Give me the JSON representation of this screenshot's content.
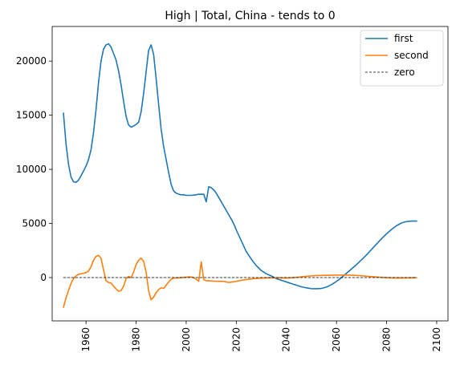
{
  "chart_data": {
    "type": "line",
    "title": "High | Total, China  - tends to 0",
    "xlabel": "",
    "ylabel": "",
    "xlim": [
      1946.5,
      2104.5
    ],
    "ylim": [
      -4000,
      23200
    ],
    "x_ticks": [
      1960,
      1980,
      2000,
      2020,
      2040,
      2060,
      2080,
      2100
    ],
    "x_tick_labels": [
      "1960",
      "1980",
      "2000",
      "2020",
      "2040",
      "2060",
      "2080",
      "2100"
    ],
    "y_ticks": [
      0,
      5000,
      10000,
      15000,
      20000
    ],
    "y_tick_labels": [
      "0",
      "5000",
      "10000",
      "15000",
      "20000"
    ],
    "x_tick_rotation": 90,
    "grid": false,
    "legend_position": "top-right",
    "series": [
      {
        "name": "first",
        "color": "#1f77b4",
        "style": "solid",
        "points": [
          [
            1951,
            15200
          ],
          [
            1952,
            12400
          ],
          [
            1953,
            10500
          ],
          [
            1954,
            9300
          ],
          [
            1955,
            8850
          ],
          [
            1956,
            8800
          ],
          [
            1957,
            9000
          ],
          [
            1958,
            9400
          ],
          [
            1959,
            9850
          ],
          [
            1960,
            10300
          ],
          [
            1961,
            10900
          ],
          [
            1962,
            11800
          ],
          [
            1963,
            13400
          ],
          [
            1964,
            15500
          ],
          [
            1965,
            18000
          ],
          [
            1966,
            20000
          ],
          [
            1967,
            21100
          ],
          [
            1968,
            21500
          ],
          [
            1969,
            21600
          ],
          [
            1970,
            21300
          ],
          [
            1971,
            20700
          ],
          [
            1972,
            20100
          ],
          [
            1973,
            19100
          ],
          [
            1974,
            17800
          ],
          [
            1975,
            16300
          ],
          [
            1976,
            14900
          ],
          [
            1977,
            14100
          ],
          [
            1978,
            13900
          ],
          [
            1979,
            14000
          ],
          [
            1980,
            14150
          ],
          [
            1981,
            14350
          ],
          [
            1982,
            15300
          ],
          [
            1983,
            17000
          ],
          [
            1984,
            19000
          ],
          [
            1985,
            21000
          ],
          [
            1986,
            21500
          ],
          [
            1987,
            20600
          ],
          [
            1988,
            18400
          ],
          [
            1989,
            16000
          ],
          [
            1990,
            13700
          ],
          [
            1991,
            12100
          ],
          [
            1992,
            10900
          ],
          [
            1993,
            9700
          ],
          [
            1994,
            8600
          ],
          [
            1995,
            8000
          ],
          [
            1996,
            7800
          ],
          [
            1997,
            7700
          ],
          [
            1998,
            7650
          ],
          [
            1999,
            7650
          ],
          [
            2000,
            7600
          ],
          [
            2001,
            7600
          ],
          [
            2002,
            7600
          ],
          [
            2003,
            7620
          ],
          [
            2004,
            7650
          ],
          [
            2005,
            7700
          ],
          [
            2006,
            7700
          ],
          [
            2007,
            7700
          ],
          [
            2008,
            7000
          ],
          [
            2009,
            8400
          ],
          [
            2010,
            8300
          ],
          [
            2011,
            8100
          ],
          [
            2012,
            7800
          ],
          [
            2013,
            7400
          ],
          [
            2014,
            7000
          ],
          [
            2015,
            6600
          ],
          [
            2016,
            6200
          ],
          [
            2017,
            5800
          ],
          [
            2018,
            5400
          ],
          [
            2019,
            4950
          ],
          [
            2020,
            4400
          ],
          [
            2022,
            3400
          ],
          [
            2024,
            2400
          ],
          [
            2026,
            1700
          ],
          [
            2028,
            1100
          ],
          [
            2030,
            650
          ],
          [
            2032,
            350
          ],
          [
            2034,
            150
          ],
          [
            2036,
            -100
          ],
          [
            2038,
            -250
          ],
          [
            2040,
            -400
          ],
          [
            2042,
            -550
          ],
          [
            2044,
            -700
          ],
          [
            2046,
            -850
          ],
          [
            2048,
            -950
          ],
          [
            2050,
            -1020
          ],
          [
            2052,
            -1030
          ],
          [
            2054,
            -1000
          ],
          [
            2056,
            -880
          ],
          [
            2058,
            -650
          ],
          [
            2060,
            -350
          ],
          [
            2062,
            0
          ],
          [
            2064,
            400
          ],
          [
            2066,
            800
          ],
          [
            2068,
            1200
          ],
          [
            2070,
            1650
          ],
          [
            2072,
            2100
          ],
          [
            2074,
            2600
          ],
          [
            2076,
            3100
          ],
          [
            2078,
            3600
          ],
          [
            2080,
            4050
          ],
          [
            2082,
            4450
          ],
          [
            2084,
            4800
          ],
          [
            2086,
            5050
          ],
          [
            2088,
            5180
          ],
          [
            2090,
            5220
          ],
          [
            2092,
            5220
          ]
        ]
      },
      {
        "name": "second",
        "color": "#ff7f0e",
        "style": "solid",
        "points": [
          [
            1951,
            -2750
          ],
          [
            1952,
            -1900
          ],
          [
            1953,
            -1200
          ],
          [
            1954,
            -550
          ],
          [
            1955,
            -100
          ],
          [
            1956,
            150
          ],
          [
            1957,
            300
          ],
          [
            1958,
            350
          ],
          [
            1959,
            400
          ],
          [
            1960,
            450
          ],
          [
            1961,
            600
          ],
          [
            1962,
            1000
          ],
          [
            1963,
            1600
          ],
          [
            1964,
            1950
          ],
          [
            1965,
            2050
          ],
          [
            1966,
            1800
          ],
          [
            1967,
            700
          ],
          [
            1968,
            -300
          ],
          [
            1969,
            -450
          ],
          [
            1970,
            -500
          ],
          [
            1971,
            -800
          ],
          [
            1972,
            -1050
          ],
          [
            1973,
            -1250
          ],
          [
            1974,
            -1200
          ],
          [
            1975,
            -800
          ],
          [
            1976,
            -100
          ],
          [
            1977,
            100
          ],
          [
            1978,
            0
          ],
          [
            1979,
            500
          ],
          [
            1980,
            1200
          ],
          [
            1981,
            1600
          ],
          [
            1982,
            1800
          ],
          [
            1983,
            1500
          ],
          [
            1984,
            500
          ],
          [
            1985,
            -1200
          ],
          [
            1986,
            -2050
          ],
          [
            1987,
            -1800
          ],
          [
            1988,
            -1400
          ],
          [
            1989,
            -1100
          ],
          [
            1990,
            -950
          ],
          [
            1991,
            -1000
          ],
          [
            1992,
            -700
          ],
          [
            1993,
            -400
          ],
          [
            1994,
            -150
          ],
          [
            1995,
            -50
          ],
          [
            1996,
            -30
          ],
          [
            1997,
            -20
          ],
          [
            1998,
            0
          ],
          [
            1999,
            20
          ],
          [
            2000,
            40
          ],
          [
            2001,
            60
          ],
          [
            2002,
            50
          ],
          [
            2003,
            0
          ],
          [
            2004,
            -150
          ],
          [
            2005,
            -350
          ],
          [
            2006,
            1450
          ],
          [
            2007,
            -200
          ],
          [
            2008,
            -280
          ],
          [
            2009,
            -300
          ],
          [
            2010,
            -320
          ],
          [
            2011,
            -330
          ],
          [
            2012,
            -340
          ],
          [
            2013,
            -340
          ],
          [
            2014,
            -345
          ],
          [
            2015,
            -350
          ],
          [
            2016,
            -400
          ],
          [
            2017,
            -450
          ],
          [
            2018,
            -420
          ],
          [
            2019,
            -380
          ],
          [
            2020,
            -350
          ],
          [
            2022,
            -250
          ],
          [
            2024,
            -180
          ],
          [
            2026,
            -120
          ],
          [
            2028,
            -80
          ],
          [
            2030,
            -50
          ],
          [
            2032,
            -30
          ],
          [
            2034,
            -20
          ],
          [
            2036,
            -20
          ],
          [
            2038,
            -30
          ],
          [
            2040,
            -40
          ],
          [
            2042,
            -20
          ],
          [
            2044,
            20
          ],
          [
            2046,
            70
          ],
          [
            2048,
            120
          ],
          [
            2050,
            160
          ],
          [
            2052,
            190
          ],
          [
            2054,
            200
          ],
          [
            2056,
            210
          ],
          [
            2058,
            220
          ],
          [
            2060,
            230
          ],
          [
            2062,
            230
          ],
          [
            2064,
            230
          ],
          [
            2066,
            220
          ],
          [
            2068,
            200
          ],
          [
            2070,
            170
          ],
          [
            2072,
            130
          ],
          [
            2074,
            90
          ],
          [
            2076,
            50
          ],
          [
            2078,
            20
          ],
          [
            2080,
            -10
          ],
          [
            2082,
            -30
          ],
          [
            2084,
            -40
          ],
          [
            2086,
            -40
          ],
          [
            2088,
            -30
          ],
          [
            2090,
            -20
          ],
          [
            2092,
            -10
          ]
        ]
      },
      {
        "name": "zero",
        "color": "#000000",
        "style": "dashed",
        "points": [
          [
            1951,
            0
          ],
          [
            2092,
            0
          ]
        ]
      }
    ]
  }
}
